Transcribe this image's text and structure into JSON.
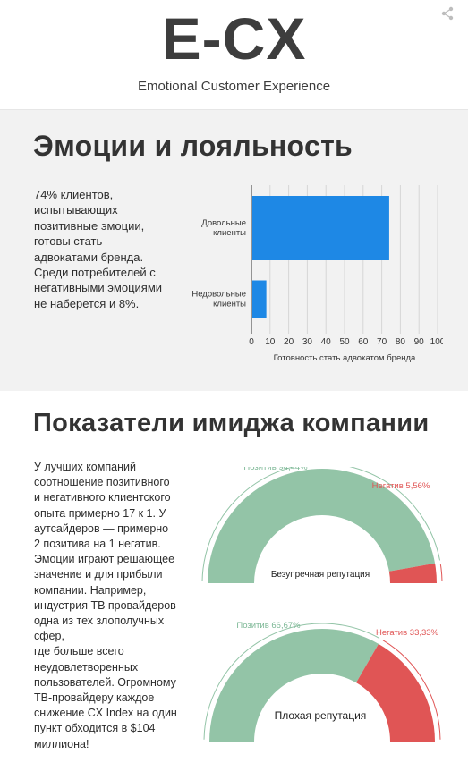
{
  "header": {
    "logo": "E-CX",
    "subtitle": "Emotional Customer Experience"
  },
  "section1": {
    "title": "Эмоции и лояльность",
    "text_lines": [
      "74% клиентов,",
      "испытывающих",
      "позитивные эмоции,",
      "готовы стать",
      "адвокатами бренда.",
      "Среди потребителей с",
      "негативными эмоциями",
      "не наберется и 8%."
    ]
  },
  "chart_data": {
    "type": "bar",
    "orientation": "horizontal",
    "categories": [
      [
        "Довольные",
        "клиенты"
      ],
      [
        "Недовольные",
        "клиенты"
      ]
    ],
    "values": [
      74,
      8
    ],
    "xlabel": "Готовность стать адвокатом бренда",
    "xlim": [
      0,
      100
    ],
    "xticks": [
      "0",
      "10",
      "20",
      "30",
      "40",
      "50",
      "60",
      "70",
      "80",
      "90",
      "100"
    ],
    "grid": true,
    "color": "#1e88e5"
  },
  "section2": {
    "title": "Показатели имиджа компании",
    "text_lines": [
      "У лучших компаний",
      "соотношение позитивного",
      "и негативного клиентского",
      "опыта примерно 17 к 1. У",
      "аутсайдеров  — примерно",
      "2 позитива на 1 негатив.",
      "Эмоции играют решающее",
      "значение и для прибыли",
      "компании. Например,",
      "индустрия ТВ провайдеров —",
      "одна из тех злополучных сфер,",
      "где больше всего",
      "неудовлетворенных",
      "пользователей. Огромному",
      "ТВ-провайдеру каждое",
      "снижение  CX Index на один",
      "пункт обходится в $104",
      "миллиона!"
    ]
  },
  "gauges": [
    {
      "positive_label": "Позитив 94,44%",
      "negative_label": "Негатив 5,56%",
      "positive": 94.44,
      "negative": 5.56,
      "center_label": "Безупречная репутация"
    },
    {
      "positive_label": "Позитив 66,67%",
      "negative_label": "Негатив 33,33%",
      "positive": 66.67,
      "negative": 33.33,
      "center_label": "Плохая репутация"
    }
  ],
  "colors": {
    "positive": "#93c4a7",
    "negative": "#e05555",
    "bar": "#1e88e5",
    "section_bg": "#f2f2f2"
  },
  "icons": {
    "share": "share-icon"
  }
}
